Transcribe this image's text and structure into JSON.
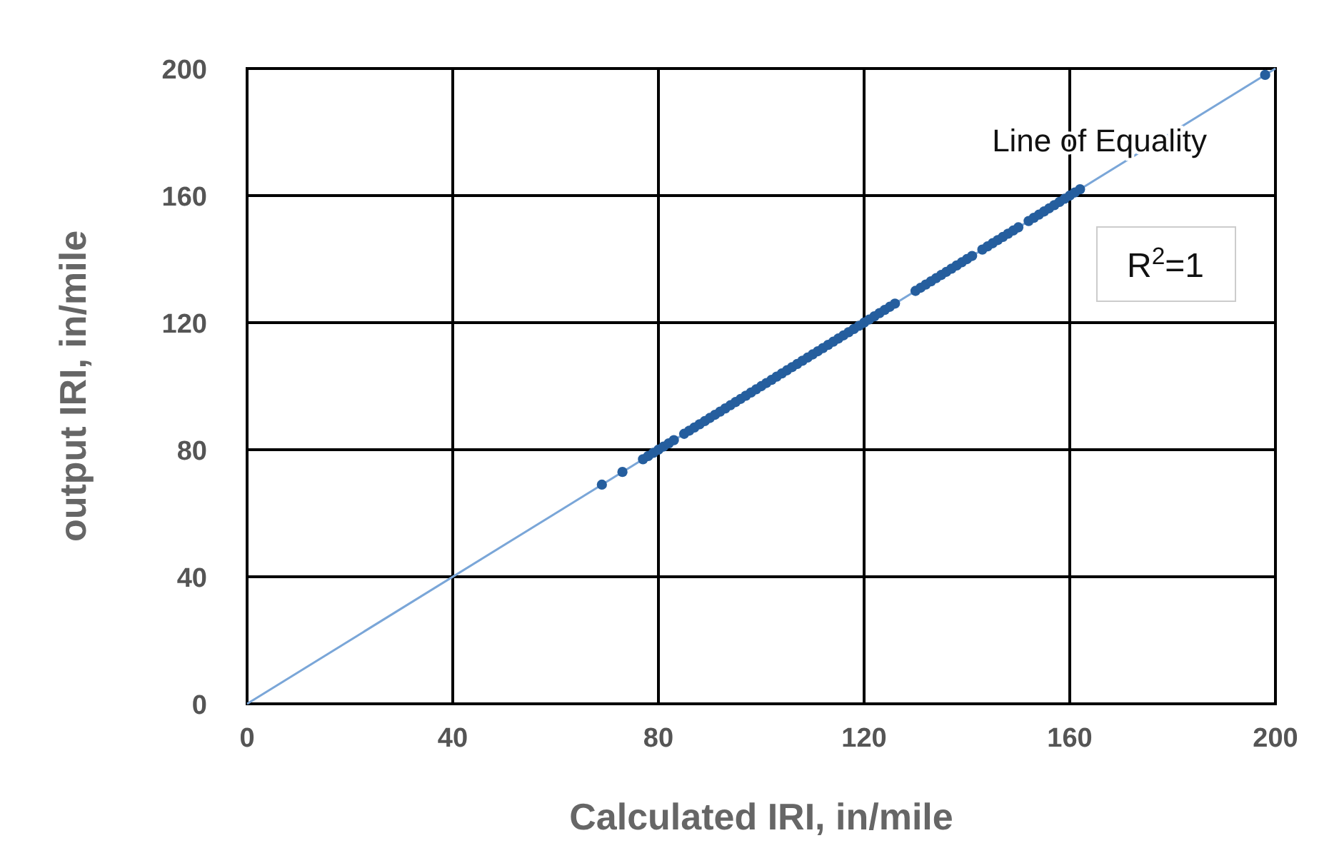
{
  "chart_data": {
    "type": "scatter",
    "xlabel": "Calculated IRI, in/mile",
    "ylabel": "output IRI, in/mile",
    "xlim": [
      0,
      200
    ],
    "ylim": [
      0,
      200
    ],
    "xticks": [
      0,
      40,
      80,
      120,
      160,
      200
    ],
    "yticks": [
      0,
      40,
      80,
      120,
      160,
      200
    ],
    "grid": true,
    "marker": "circle",
    "series": [
      {
        "color": "#255e9e",
        "x": [
          69,
          73,
          77,
          78,
          79,
          80,
          81,
          82,
          83,
          85,
          86,
          87,
          88,
          89,
          90,
          91,
          92,
          93,
          94,
          95,
          96,
          97,
          98,
          99,
          100,
          101,
          102,
          103,
          104,
          105,
          106,
          107,
          108,
          109,
          110,
          111,
          112,
          113,
          114,
          115,
          116,
          117,
          118,
          119,
          120,
          121,
          122,
          123,
          124,
          125,
          126,
          130,
          131,
          132,
          133,
          134,
          135,
          136,
          137,
          138,
          139,
          140,
          141,
          143,
          144,
          145,
          146,
          147,
          148,
          149,
          150,
          152,
          153,
          154,
          155,
          156,
          157,
          158,
          159,
          160,
          161,
          162,
          198
        ],
        "values": [
          69,
          73,
          77,
          78,
          79,
          80,
          81,
          82,
          83,
          85,
          86,
          87,
          88,
          89,
          90,
          91,
          92,
          93,
          94,
          95,
          96,
          97,
          98,
          99,
          100,
          101,
          102,
          103,
          104,
          105,
          106,
          107,
          108,
          109,
          110,
          111,
          112,
          113,
          114,
          115,
          116,
          117,
          118,
          119,
          120,
          121,
          122,
          123,
          124,
          125,
          126,
          130,
          131,
          132,
          133,
          134,
          135,
          136,
          137,
          138,
          139,
          140,
          141,
          143,
          144,
          145,
          146,
          147,
          148,
          149,
          150,
          152,
          153,
          154,
          155,
          156,
          157,
          158,
          159,
          160,
          161,
          162,
          198
        ]
      },
      {
        "type": "line",
        "name": "Line of Equality",
        "color": "#7aa6d8",
        "x": [
          0,
          200
        ],
        "values": [
          0,
          200
        ],
        "marker": "none"
      }
    ],
    "annotations": [
      "R$^{2}$=1"
    ]
  }
}
